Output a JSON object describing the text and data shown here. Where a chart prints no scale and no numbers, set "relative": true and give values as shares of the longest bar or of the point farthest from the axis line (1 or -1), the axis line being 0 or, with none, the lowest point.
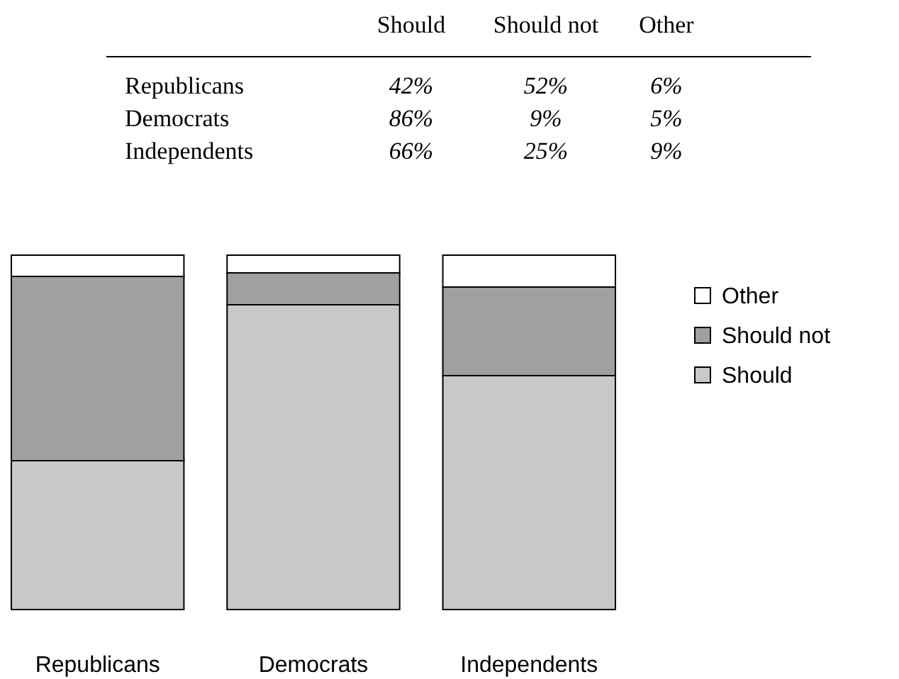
{
  "chart_data": [
    {
      "type": "heatmap",
      "categories": [
        "Should",
        "Should not",
        "Other"
      ],
      "y_categories": [
        "Republicans",
        "Democrats",
        "Independents"
      ],
      "cells": [
        [
          42,
          52,
          6
        ],
        [
          86,
          9,
          5
        ],
        [
          66,
          25,
          9
        ]
      ],
      "cell_labels": [
        [
          "42%",
          "52%",
          "6%"
        ],
        [
          "86%",
          "9%",
          "5%"
        ],
        [
          "66%",
          "25%",
          "9%"
        ]
      ]
    },
    {
      "type": "bar",
      "stacked": true,
      "relative": true,
      "legend": "right",
      "categories": [
        "Republicans",
        "Democrats",
        "Independents"
      ],
      "series": [
        {
          "name": "Should",
          "color": "#c8c8c8",
          "values": [
            0.42,
            0.86,
            0.66
          ]
        },
        {
          "name": "Should not",
          "color": "#a0a0a0",
          "values": [
            0.52,
            0.09,
            0.25
          ]
        },
        {
          "name": "Other",
          "color": "#ffffff",
          "values": [
            0.06,
            0.05,
            0.09
          ]
        }
      ]
    }
  ]
}
